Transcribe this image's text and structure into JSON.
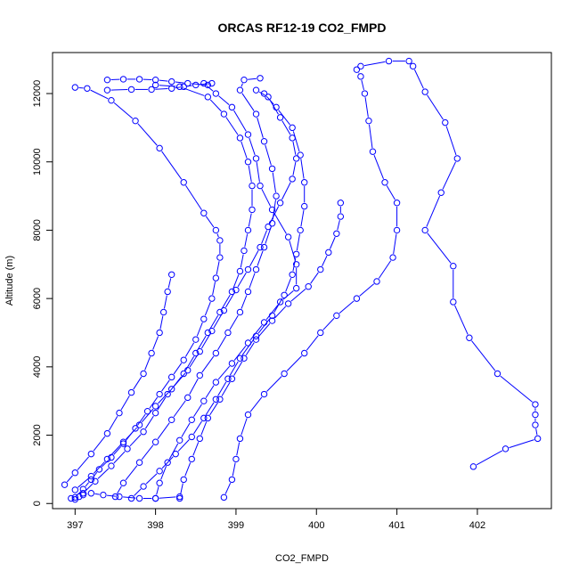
{
  "chart_data": {
    "type": "line",
    "title": "ORCAS RF12-19 CO2_FMPD",
    "xlabel": "CO2_FMPD",
    "ylabel": "Altitude (m)",
    "xlim": [
      396.72,
      402.92
    ],
    "ylim": [
      -150,
      13200
    ],
    "xticks": [
      397,
      398,
      399,
      400,
      401,
      402
    ],
    "yticks": [
      0,
      2000,
      4000,
      6000,
      8000,
      10000,
      12000
    ],
    "grid": false,
    "legend": "none",
    "marker": "open-circle",
    "line_color": "#0000ff",
    "series": [
      {
        "points": [
          [
            397.0,
            180
          ],
          [
            397.1,
            420
          ],
          [
            397.2,
            700
          ],
          [
            397.3,
            1000
          ],
          [
            397.45,
            1350
          ],
          [
            397.6,
            1750
          ],
          [
            397.75,
            2200
          ],
          [
            397.9,
            2700
          ],
          [
            398.05,
            3200
          ],
          [
            398.2,
            3700
          ],
          [
            398.35,
            4200
          ],
          [
            398.5,
            4800
          ],
          [
            398.6,
            5400
          ],
          [
            398.7,
            6000
          ],
          [
            398.75,
            6600
          ],
          [
            398.8,
            7200
          ],
          [
            398.8,
            7700
          ],
          [
            398.75,
            8000
          ],
          [
            398.6,
            8500
          ],
          [
            398.35,
            9400
          ],
          [
            398.05,
            10400
          ],
          [
            397.75,
            11200
          ],
          [
            397.45,
            11800
          ],
          [
            397.15,
            12150
          ],
          [
            397.0,
            12180
          ]
        ]
      },
      {
        "points": [
          [
            397.1,
            300
          ],
          [
            397.25,
            650
          ],
          [
            397.45,
            1100
          ],
          [
            397.65,
            1600
          ],
          [
            397.85,
            2100
          ],
          [
            398.0,
            2650
          ],
          [
            398.15,
            3200
          ],
          [
            398.35,
            3800
          ],
          [
            398.5,
            4400
          ],
          [
            398.65,
            5000
          ],
          [
            398.8,
            5600
          ],
          [
            398.95,
            6200
          ],
          [
            399.05,
            6800
          ],
          [
            399.1,
            7400
          ],
          [
            399.15,
            8000
          ],
          [
            399.2,
            8600
          ],
          [
            399.2,
            9300
          ],
          [
            399.15,
            10000
          ],
          [
            399.05,
            10700
          ],
          [
            398.85,
            11400
          ],
          [
            398.65,
            11900
          ],
          [
            398.3,
            12200
          ],
          [
            398.0,
            12250
          ]
        ]
      },
      {
        "points": [
          [
            397.5,
            200
          ],
          [
            397.6,
            600
          ],
          [
            397.8,
            1200
          ],
          [
            398.0,
            1800
          ],
          [
            398.2,
            2450
          ],
          [
            398.4,
            3100
          ],
          [
            398.55,
            3750
          ],
          [
            398.75,
            4400
          ],
          [
            398.9,
            5000
          ],
          [
            399.05,
            5600
          ],
          [
            399.15,
            6200
          ],
          [
            399.25,
            6850
          ],
          [
            399.35,
            7500
          ],
          [
            399.45,
            8200
          ],
          [
            399.5,
            9000
          ],
          [
            399.45,
            9800
          ],
          [
            399.35,
            10600
          ],
          [
            399.25,
            11400
          ],
          [
            399.05,
            12100
          ],
          [
            399.1,
            12400
          ],
          [
            399.3,
            12450
          ]
        ]
      },
      {
        "points": [
          [
            397.0,
            400
          ],
          [
            397.2,
            800
          ],
          [
            397.4,
            1300
          ],
          [
            397.6,
            1800
          ],
          [
            397.8,
            2300
          ],
          [
            398.0,
            2850
          ],
          [
            398.2,
            3350
          ],
          [
            398.4,
            3900
          ],
          [
            398.55,
            4450
          ],
          [
            398.7,
            5050
          ],
          [
            398.85,
            5650
          ],
          [
            399.0,
            6250
          ],
          [
            399.15,
            6850
          ],
          [
            399.3,
            7500
          ],
          [
            399.4,
            8100
          ],
          [
            399.55,
            8800
          ],
          [
            399.7,
            9500
          ],
          [
            399.75,
            10100
          ],
          [
            399.7,
            10700
          ],
          [
            399.55,
            11300
          ],
          [
            399.4,
            11900
          ],
          [
            399.25,
            12100
          ]
        ]
      },
      {
        "points": [
          [
            397.7,
            150
          ],
          [
            397.85,
            500
          ],
          [
            398.05,
            950
          ],
          [
            398.25,
            1450
          ],
          [
            398.45,
            1950
          ],
          [
            398.6,
            2500
          ],
          [
            398.75,
            3050
          ],
          [
            398.9,
            3650
          ],
          [
            399.05,
            4250
          ],
          [
            399.25,
            4900
          ],
          [
            399.45,
            5500
          ],
          [
            399.6,
            6100
          ],
          [
            399.7,
            6700
          ],
          [
            399.75,
            7300
          ],
          [
            399.8,
            8000
          ],
          [
            399.85,
            8700
          ],
          [
            399.85,
            9400
          ],
          [
            399.8,
            10200
          ],
          [
            399.7,
            11000
          ],
          [
            399.5,
            11600
          ],
          [
            399.35,
            12000
          ]
        ]
      },
      {
        "points": [
          [
            398.0,
            150
          ],
          [
            398.05,
            600
          ],
          [
            398.15,
            1200
          ],
          [
            398.3,
            1850
          ],
          [
            398.45,
            2450
          ],
          [
            398.6,
            3000
          ],
          [
            398.75,
            3550
          ],
          [
            398.95,
            4100
          ],
          [
            399.15,
            4700
          ],
          [
            399.35,
            5300
          ],
          [
            399.55,
            5900
          ],
          [
            399.75,
            6300
          ],
          [
            399.75,
            7000
          ],
          [
            399.65,
            7800
          ],
          [
            399.45,
            8600
          ],
          [
            399.3,
            9300
          ],
          [
            399.25,
            10100
          ],
          [
            399.15,
            10800
          ],
          [
            398.95,
            11600
          ],
          [
            398.75,
            12000
          ],
          [
            398.6,
            12300
          ]
        ]
      },
      {
        "points": [
          [
            398.3,
            150
          ],
          [
            398.35,
            700
          ],
          [
            398.45,
            1300
          ],
          [
            398.55,
            1900
          ],
          [
            398.65,
            2500
          ],
          [
            398.8,
            3050
          ],
          [
            398.95,
            3650
          ],
          [
            399.1,
            4250
          ],
          [
            399.25,
            4800
          ],
          [
            399.45,
            5350
          ],
          [
            399.65,
            5850
          ],
          [
            399.9,
            6350
          ],
          [
            400.05,
            6850
          ],
          [
            400.15,
            7350
          ],
          [
            400.25,
            7900
          ],
          [
            400.3,
            8400
          ],
          [
            400.3,
            8800
          ]
        ]
      },
      {
        "points": [
          [
            398.85,
            180
          ],
          [
            398.95,
            700
          ],
          [
            399.0,
            1300
          ],
          [
            399.05,
            1900
          ],
          [
            399.15,
            2600
          ],
          [
            399.35,
            3200
          ],
          [
            399.6,
            3800
          ],
          [
            399.85,
            4400
          ],
          [
            400.05,
            5000
          ],
          [
            400.25,
            5500
          ],
          [
            400.5,
            6000
          ],
          [
            400.75,
            6500
          ],
          [
            400.95,
            7200
          ],
          [
            401.0,
            8000
          ],
          [
            401.0,
            8800
          ],
          [
            400.85,
            9400
          ],
          [
            400.7,
            10300
          ],
          [
            400.65,
            11200
          ],
          [
            400.6,
            12000
          ],
          [
            400.55,
            12500
          ],
          [
            400.5,
            12700
          ]
        ]
      },
      {
        "points": [
          [
            396.87,
            550
          ],
          [
            397.0,
            900
          ],
          [
            397.2,
            1450
          ],
          [
            397.4,
            2050
          ],
          [
            397.55,
            2650
          ],
          [
            397.7,
            3250
          ],
          [
            397.85,
            3800
          ],
          [
            397.95,
            4400
          ],
          [
            398.05,
            5000
          ],
          [
            398.1,
            5600
          ],
          [
            398.15,
            6200
          ],
          [
            398.2,
            6700
          ]
        ]
      },
      {
        "points": [
          [
            401.95,
            1080
          ],
          [
            402.35,
            1600
          ],
          [
            402.75,
            1900
          ],
          [
            402.72,
            2300
          ],
          [
            402.72,
            2600
          ],
          [
            402.72,
            2900
          ],
          [
            402.25,
            3800
          ],
          [
            401.9,
            4850
          ],
          [
            401.7,
            5900
          ],
          [
            401.7,
            6950
          ],
          [
            401.35,
            8000
          ],
          [
            401.55,
            9100
          ],
          [
            401.75,
            10100
          ],
          [
            401.6,
            11150
          ],
          [
            401.35,
            12050
          ],
          [
            401.2,
            12800
          ],
          [
            401.15,
            12950
          ],
          [
            400.9,
            12950
          ],
          [
            400.55,
            12800
          ]
        ]
      },
      {
        "points": [
          [
            396.95,
            150
          ],
          [
            397.0,
            120
          ],
          [
            397.05,
            200
          ],
          [
            397.1,
            250
          ],
          [
            397.2,
            300
          ],
          [
            397.35,
            250
          ],
          [
            397.55,
            200
          ],
          [
            397.8,
            150
          ],
          [
            398.0,
            150
          ],
          [
            398.3,
            200
          ]
        ]
      },
      {
        "points": [
          [
            397.4,
            12400
          ],
          [
            397.6,
            12420
          ],
          [
            397.8,
            12420
          ],
          [
            398.0,
            12400
          ],
          [
            398.2,
            12350
          ],
          [
            398.4,
            12300
          ],
          [
            398.65,
            12250
          ]
        ]
      },
      {
        "points": [
          [
            397.4,
            12100
          ],
          [
            397.7,
            12120
          ],
          [
            397.95,
            12120
          ],
          [
            398.2,
            12150
          ],
          [
            398.35,
            12200
          ],
          [
            398.5,
            12250
          ],
          [
            398.7,
            12300
          ]
        ]
      }
    ]
  }
}
